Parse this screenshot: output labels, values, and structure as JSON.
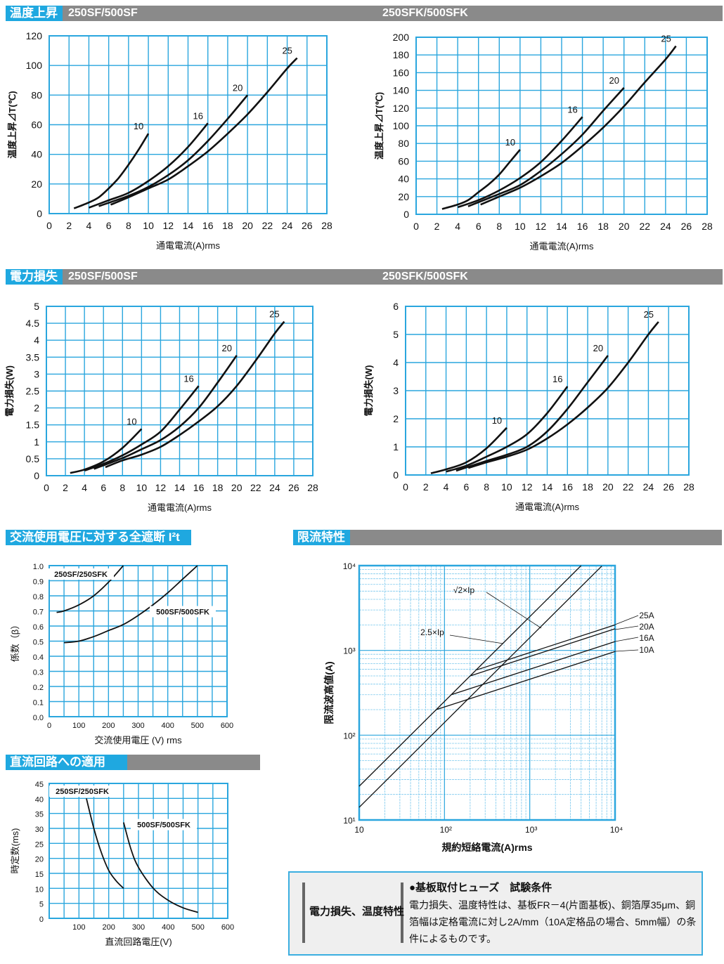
{
  "headers": {
    "temp": {
      "tag": "温度上昇",
      "sub_left": "250SF/500SF",
      "sub_right": "250SFK/500SFK"
    },
    "power": {
      "tag": "電力損失",
      "sub_left": "250SF/500SF",
      "sub_right": "250SFK/500SFK"
    },
    "i2t": {
      "tag": "交流使用電圧に対する全遮断 I²t"
    },
    "limit": {
      "tag": "限流特性"
    },
    "dc": {
      "tag": "直流回路への適用"
    }
  },
  "note": {
    "label": "電力損失、温度特性",
    "title": "●基板取付ヒューズ　試験条件",
    "body": "電力損失、温度特性は、基板FR－4(片面基板)、銅箔厚35μm、銅箔幅は定格電流に対し2A/mm（10A定格品の場合、5mm幅）の条件によるものです。"
  },
  "chart_data": [
    {
      "id": "temp_sf",
      "type": "line",
      "title": "温度上昇 250SF/500SF",
      "xlabel": "通電電流(A)rms",
      "ylabel": "温度上昇⊿T(℃)",
      "xlim": [
        0,
        28
      ],
      "ylim": [
        0,
        120
      ],
      "xticks": [
        0,
        2,
        4,
        6,
        8,
        10,
        12,
        14,
        16,
        18,
        20,
        22,
        24,
        26,
        28
      ],
      "yticks": [
        0,
        20,
        40,
        60,
        80,
        100,
        120
      ],
      "grid": true,
      "series": [
        {
          "name": "10",
          "x": [
            2.5,
            4,
            5,
            6,
            7,
            8,
            9,
            10
          ],
          "y": [
            3.5,
            7.5,
            11,
            17,
            24,
            33,
            43,
            54
          ]
        },
        {
          "name": "16",
          "x": [
            4,
            6,
            8,
            10,
            12,
            14,
            16
          ],
          "y": [
            4,
            9,
            14,
            22,
            32,
            45,
            61
          ]
        },
        {
          "name": "20",
          "x": [
            5,
            8,
            10,
            12,
            14,
            16,
            18,
            20
          ],
          "y": [
            5,
            12,
            18,
            26,
            36,
            49,
            64,
            80
          ]
        },
        {
          "name": "25",
          "x": [
            6.2,
            8,
            10,
            12,
            14,
            16,
            18,
            20,
            22,
            24,
            25
          ],
          "y": [
            6,
            11,
            17,
            23,
            32,
            42,
            54,
            67,
            82,
            98,
            105
          ]
        }
      ]
    },
    {
      "id": "temp_sfk",
      "type": "line",
      "title": "温度上昇 250SFK/500SFK",
      "xlabel": "通電電流(A)rms",
      "ylabel": "温度上昇⊿T(℃)",
      "xlim": [
        0,
        28
      ],
      "ylim": [
        0,
        200
      ],
      "xticks": [
        0,
        2,
        4,
        6,
        8,
        10,
        12,
        14,
        16,
        18,
        20,
        22,
        24,
        26,
        28
      ],
      "yticks": [
        0,
        20,
        40,
        60,
        80,
        100,
        120,
        140,
        160,
        180,
        200
      ],
      "grid": true,
      "series": [
        {
          "name": "10",
          "x": [
            2.5,
            4,
            5,
            6,
            7,
            8,
            9,
            10
          ],
          "y": [
            6,
            11,
            16,
            25,
            34,
            45,
            59,
            73
          ]
        },
        {
          "name": "16",
          "x": [
            4,
            6,
            8,
            10,
            12,
            14,
            16
          ],
          "y": [
            8,
            16,
            27,
            41,
            59,
            83,
            110
          ]
        },
        {
          "name": "20",
          "x": [
            5,
            8,
            10,
            12,
            14,
            16,
            18,
            20
          ],
          "y": [
            9,
            23,
            33,
            49,
            68,
            90,
            117,
            143
          ]
        },
        {
          "name": "25",
          "x": [
            6.2,
            8,
            10,
            12,
            14,
            16,
            18,
            20,
            22,
            24,
            25
          ],
          "y": [
            11,
            20,
            30,
            43,
            58,
            77,
            98,
            122,
            149,
            175,
            190
          ]
        }
      ]
    },
    {
      "id": "power_sf",
      "type": "line",
      "title": "電力損失 250SF/500SF",
      "xlabel": "通電電流(A)rms",
      "ylabel": "電力損失(W)",
      "xlim": [
        0,
        28
      ],
      "ylim": [
        0,
        5
      ],
      "xticks": [
        0,
        2,
        4,
        6,
        8,
        10,
        12,
        14,
        16,
        18,
        20,
        22,
        24,
        26,
        28
      ],
      "yticks": [
        0,
        0.5,
        1,
        1.5,
        2,
        2.5,
        3,
        3.5,
        4,
        4.5,
        5
      ],
      "grid": true,
      "series": [
        {
          "name": "10",
          "x": [
            2.5,
            4,
            6,
            8,
            10
          ],
          "y": [
            0.08,
            0.18,
            0.42,
            0.82,
            1.38
          ]
        },
        {
          "name": "16",
          "x": [
            4,
            6,
            8,
            10,
            12,
            14,
            16
          ],
          "y": [
            0.15,
            0.35,
            0.6,
            0.92,
            1.3,
            1.95,
            2.65
          ]
        },
        {
          "name": "20",
          "x": [
            5,
            8,
            10,
            12,
            14,
            16,
            18,
            20
          ],
          "y": [
            0.2,
            0.52,
            0.78,
            1.05,
            1.45,
            2.0,
            2.75,
            3.55
          ]
        },
        {
          "name": "25",
          "x": [
            6.2,
            8,
            10,
            12,
            14,
            16,
            18,
            20,
            22,
            24,
            25
          ],
          "y": [
            0.25,
            0.45,
            0.62,
            0.85,
            1.2,
            1.6,
            2.05,
            2.65,
            3.4,
            4.2,
            4.55
          ]
        }
      ]
    },
    {
      "id": "power_sfk",
      "type": "line",
      "title": "電力損失 250SFK/500SFK",
      "xlabel": "通電電流(A)rms",
      "ylabel": "電力損失(W)",
      "xlim": [
        0,
        28
      ],
      "ylim": [
        0,
        6
      ],
      "xticks": [
        0,
        2,
        4,
        6,
        8,
        10,
        12,
        14,
        16,
        18,
        20,
        22,
        24,
        26,
        28
      ],
      "yticks": [
        0,
        1,
        2,
        3,
        4,
        5,
        6
      ],
      "grid": true,
      "series": [
        {
          "name": "10",
          "x": [
            2.5,
            4,
            6,
            8,
            10
          ],
          "y": [
            0.06,
            0.2,
            0.45,
            0.95,
            1.68
          ]
        },
        {
          "name": "16",
          "x": [
            4,
            6,
            8,
            10,
            12,
            14,
            16
          ],
          "y": [
            0.12,
            0.33,
            0.65,
            1.0,
            1.45,
            2.2,
            3.15
          ]
        },
        {
          "name": "20",
          "x": [
            5,
            8,
            10,
            12,
            14,
            16,
            18,
            20
          ],
          "y": [
            0.15,
            0.5,
            0.72,
            1.0,
            1.55,
            2.35,
            3.3,
            4.25
          ]
        },
        {
          "name": "25",
          "x": [
            6.2,
            8,
            10,
            12,
            14,
            16,
            18,
            20,
            22,
            24,
            25
          ],
          "y": [
            0.25,
            0.45,
            0.65,
            0.9,
            1.3,
            1.8,
            2.4,
            3.1,
            4.0,
            5.0,
            5.45
          ]
        }
      ]
    },
    {
      "id": "i2t",
      "type": "line",
      "title": "交流使用電圧に対する全遮断 I²t",
      "xlabel": "交流使用電圧 (V) rms",
      "ylabel": "係数（β）",
      "xlim": [
        0,
        600
      ],
      "ylim": [
        0,
        1.0
      ],
      "xticks": [
        0,
        100,
        200,
        300,
        400,
        500,
        600
      ],
      "yticks": [
        "0.0",
        "0.1",
        "0.2",
        "0.3",
        "0.4",
        "0.5",
        "0.6",
        "0.7",
        "0.8",
        "0.9",
        "1.0"
      ],
      "grid": true,
      "series": [
        {
          "name": "250SF/250SFK",
          "x": [
            25,
            50,
            100,
            150,
            200,
            250
          ],
          "y": [
            0.69,
            0.7,
            0.74,
            0.8,
            0.89,
            1.0
          ]
        },
        {
          "name": "500SF/500SFK",
          "x": [
            50,
            100,
            150,
            200,
            250,
            300,
            350,
            400,
            450,
            500
          ],
          "y": [
            0.49,
            0.5,
            0.53,
            0.57,
            0.61,
            0.67,
            0.74,
            0.82,
            0.91,
            1.0
          ]
        }
      ]
    },
    {
      "id": "dc",
      "type": "line",
      "title": "直流回路への適用",
      "xlabel": "直流回路電圧(V)",
      "ylabel": "時定数(ms)",
      "xlim": [
        0,
        600
      ],
      "ylim": [
        0,
        45
      ],
      "xticks": [
        100,
        200,
        300,
        400,
        500,
        600
      ],
      "yticks": [
        0,
        5,
        10,
        15,
        20,
        25,
        30,
        35,
        40,
        45
      ],
      "grid": true,
      "series": [
        {
          "name": "250SF/250SFK",
          "x": [
            125,
            150,
            175,
            200,
            225,
            250
          ],
          "y": [
            40,
            30,
            22,
            16,
            12.5,
            10
          ]
        },
        {
          "name": "500SF/500SFK",
          "x": [
            250,
            275,
            300,
            350,
            400,
            450,
            500
          ],
          "y": [
            32,
            23,
            17,
            10,
            6,
            3.5,
            2
          ]
        }
      ]
    },
    {
      "id": "limit",
      "type": "line",
      "title": "限流特性",
      "log": true,
      "xlabel": "規約短絡電流(A)rms",
      "ylabel": "限流波高値(A)",
      "xlim": [
        10,
        10000
      ],
      "ylim": [
        10,
        10000
      ],
      "xticks": [
        "10",
        "10²",
        "10³",
        "10⁴"
      ],
      "yticks": [
        "10¹",
        "10²",
        "10³",
        "10⁴"
      ],
      "grid": true,
      "series": [
        {
          "name": "2.5×Ip",
          "x": [
            10,
            4000
          ],
          "y": [
            25,
            10000
          ]
        },
        {
          "name": "√2×Ip",
          "x": [
            10,
            7000
          ],
          "y": [
            14.1,
            9900
          ]
        },
        {
          "name": "25A",
          "x": [
            240,
            10000
          ],
          "y": [
            590,
            2000
          ]
        },
        {
          "name": "20A",
          "x": [
            200,
            10000
          ],
          "y": [
            500,
            1800
          ]
        },
        {
          "name": "16A",
          "x": [
            120,
            10000
          ],
          "y": [
            300,
            1270
          ]
        },
        {
          "name": "10A",
          "x": [
            80,
            10000
          ],
          "y": [
            200,
            970
          ]
        }
      ],
      "annotations": [
        "√2×Ip",
        "2.5×Ip",
        "25A",
        "20A",
        "16A",
        "10A"
      ]
    }
  ]
}
